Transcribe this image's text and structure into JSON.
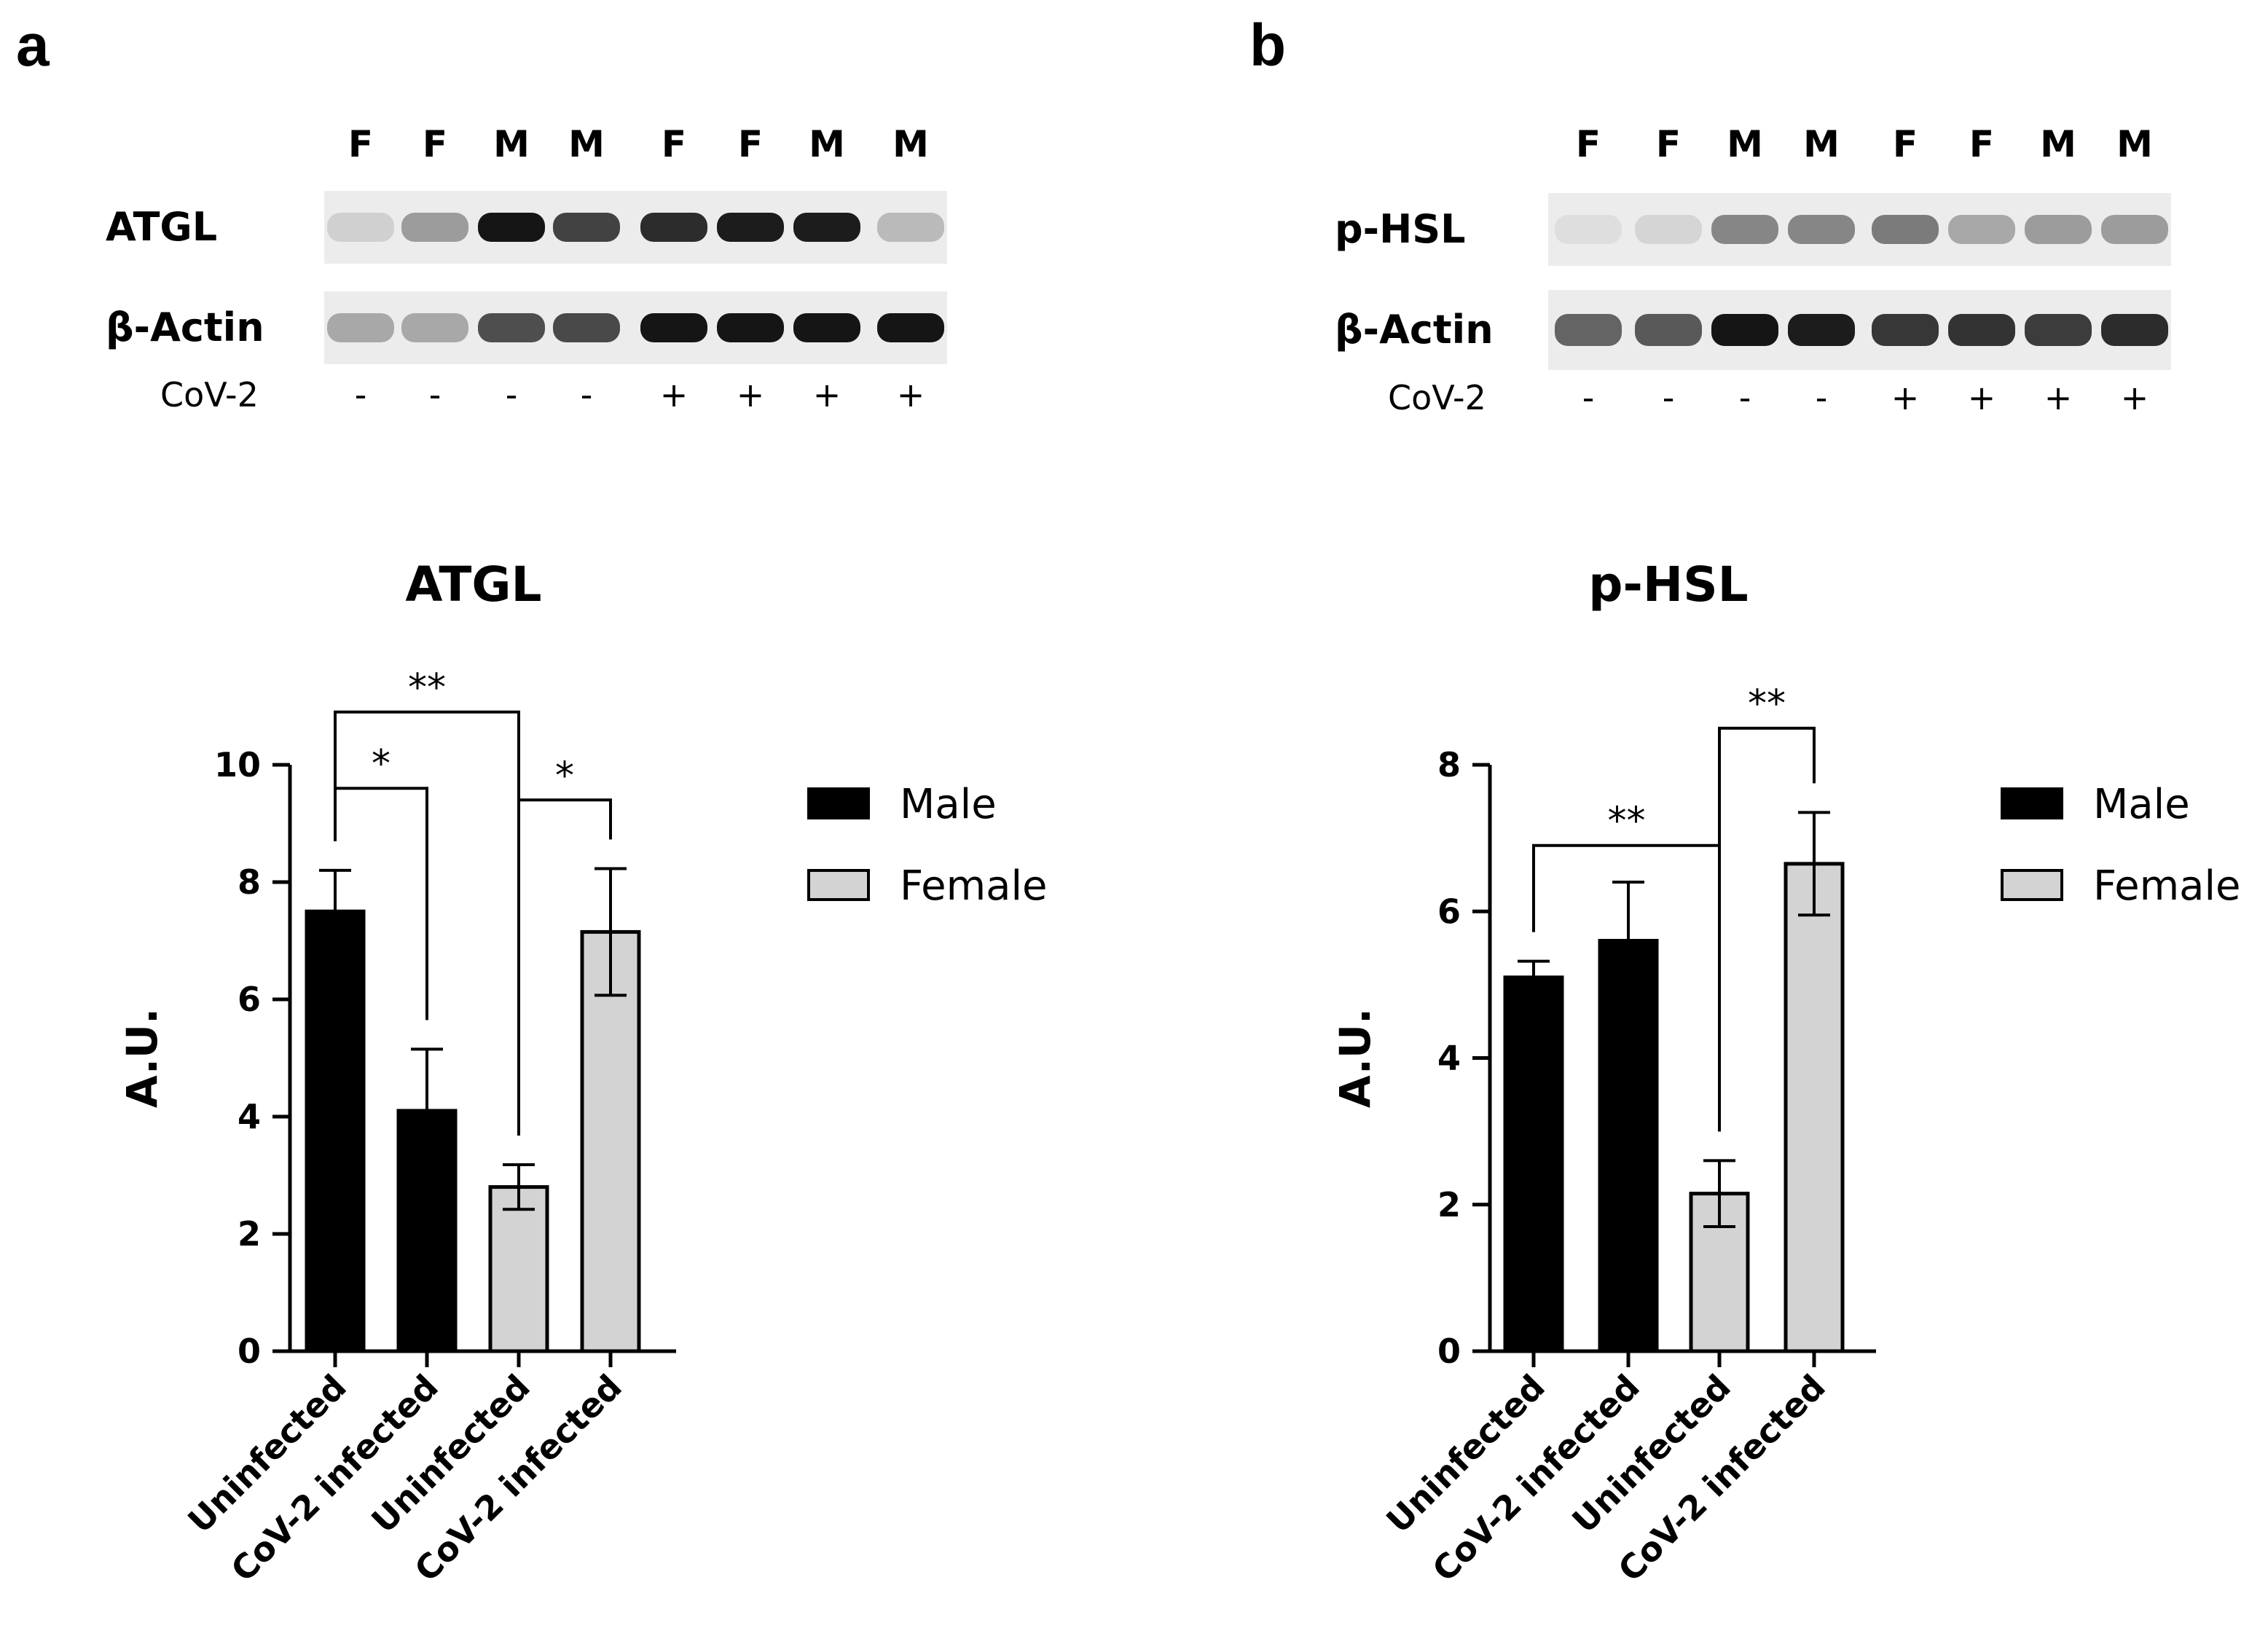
{
  "panels": [
    {
      "letter": "a",
      "blot": {
        "lanes": [
          "F",
          "F",
          "M",
          "M",
          "F",
          "F",
          "M",
          "M"
        ],
        "condition_label": "CoV-2",
        "condition": [
          "-",
          "-",
          "-",
          "-",
          "+",
          "+",
          "+",
          "+"
        ],
        "rows": [
          {
            "label": "ATGL",
            "intensity": [
              0.12,
              0.35,
              0.95,
              0.75,
              0.85,
              0.92,
              0.92,
              0.22
            ]
          },
          {
            "label": "β-Actin",
            "intensity": [
              0.3,
              0.3,
              0.7,
              0.72,
              0.95,
              0.95,
              0.95,
              0.95
            ]
          }
        ]
      },
      "chart_data": {
        "type": "bar",
        "title": "ATGL",
        "ylabel": "A.U.",
        "ylim": [
          0,
          10
        ],
        "yticks": [
          0,
          2,
          4,
          6,
          8,
          10
        ],
        "categories": [
          "Uninfected",
          "CoV-2 infected",
          "Uninfected",
          "CoV-2 infected"
        ],
        "series": [
          {
            "name": "Male",
            "color": "#000000",
            "values": [
              7.5,
              4.1,
              null,
              null
            ],
            "errors": [
              0.7,
              1.05,
              null,
              null
            ]
          },
          {
            "name": "Female",
            "color": "#d3d3d3",
            "values": [
              null,
              null,
              2.8,
              7.15
            ],
            "errors": [
              null,
              null,
              0.38,
              1.08
            ]
          }
        ],
        "significance": [
          {
            "from": 0,
            "to": 2,
            "label": "**",
            "y": 10.9
          },
          {
            "from": 0,
            "to": 1,
            "label": "*",
            "y": 9.6
          },
          {
            "from": 2,
            "to": 3,
            "label": "*",
            "y": 9.4
          }
        ],
        "legend": {
          "position": "right",
          "entries": [
            "Male",
            "Female"
          ]
        }
      }
    },
    {
      "letter": "b",
      "blot": {
        "lanes": [
          "F",
          "F",
          "M",
          "M",
          "F",
          "F",
          "M",
          "M"
        ],
        "condition_label": "CoV-2",
        "condition": [
          "-",
          "-",
          "-",
          "-",
          "+",
          "+",
          "+",
          "+"
        ],
        "rows": [
          {
            "label": "p-HSL",
            "intensity": [
              0.06,
              0.1,
              0.45,
              0.45,
              0.5,
              0.3,
              0.35,
              0.35
            ]
          },
          {
            "label": "β-Actin",
            "intensity": [
              0.6,
              0.65,
              0.95,
              0.92,
              0.8,
              0.82,
              0.78,
              0.85
            ]
          }
        ]
      },
      "chart_data": {
        "type": "bar",
        "title": "p-HSL",
        "ylabel": "A.U.",
        "ylim": [
          0,
          8
        ],
        "yticks": [
          0,
          2,
          4,
          6,
          8
        ],
        "categories": [
          "Uninfected",
          "CoV-2 infected",
          "Uninfected",
          "CoV-2 infected"
        ],
        "series": [
          {
            "name": "Male",
            "color": "#000000",
            "values": [
              5.1,
              5.6,
              null,
              null
            ],
            "errors": [
              0.22,
              0.8,
              null,
              null
            ]
          },
          {
            "name": "Female",
            "color": "#d3d3d3",
            "values": [
              null,
              null,
              2.15,
              6.65
            ],
            "errors": [
              null,
              null,
              0.45,
              0.7
            ]
          }
        ],
        "significance": [
          {
            "from": 0,
            "to": 2,
            "label": "**",
            "y": 6.9
          },
          {
            "from": 2,
            "to": 3,
            "label": "**",
            "y": 8.5
          }
        ],
        "legend": {
          "position": "right",
          "entries": [
            "Male",
            "Female"
          ]
        }
      }
    }
  ]
}
